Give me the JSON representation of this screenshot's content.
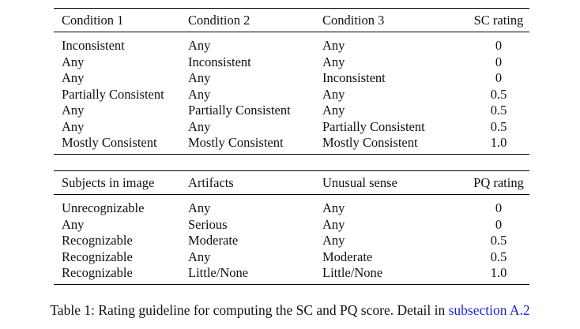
{
  "table_sc": {
    "headers": [
      "Condition 1",
      "Condition 2",
      "Condition 3",
      "SC rating"
    ],
    "rows": [
      [
        "Inconsistent",
        "Any",
        "Any",
        "0"
      ],
      [
        "Any",
        "Inconsistent",
        "Any",
        "0"
      ],
      [
        "Any",
        "Any",
        "Inconsistent",
        "0"
      ],
      [
        "Partially Consistent",
        "Any",
        "Any",
        "0.5"
      ],
      [
        "Any",
        "Partially Consistent",
        "Any",
        "0.5"
      ],
      [
        "Any",
        "Any",
        "Partially Consistent",
        "0.5"
      ],
      [
        "Mostly Consistent",
        "Mostly Consistent",
        "Mostly Consistent",
        "1.0"
      ]
    ]
  },
  "table_pq": {
    "headers": [
      "Subjects in image",
      "Artifacts",
      "Unusual sense",
      "PQ rating"
    ],
    "rows": [
      [
        "Unrecognizable",
        "Any",
        "Any",
        "0"
      ],
      [
        "Any",
        "Serious",
        "Any",
        "0"
      ],
      [
        "Recognizable",
        "Moderate",
        "Any",
        "0.5"
      ],
      [
        "Recognizable",
        "Any",
        "Moderate",
        "0.5"
      ],
      [
        "Recognizable",
        "Little/None",
        "Little/None",
        "1.0"
      ]
    ]
  },
  "caption": {
    "text": "Table 1: Rating guideline for computing the SC and PQ score. Detail in ",
    "link": "subsection A.2"
  }
}
